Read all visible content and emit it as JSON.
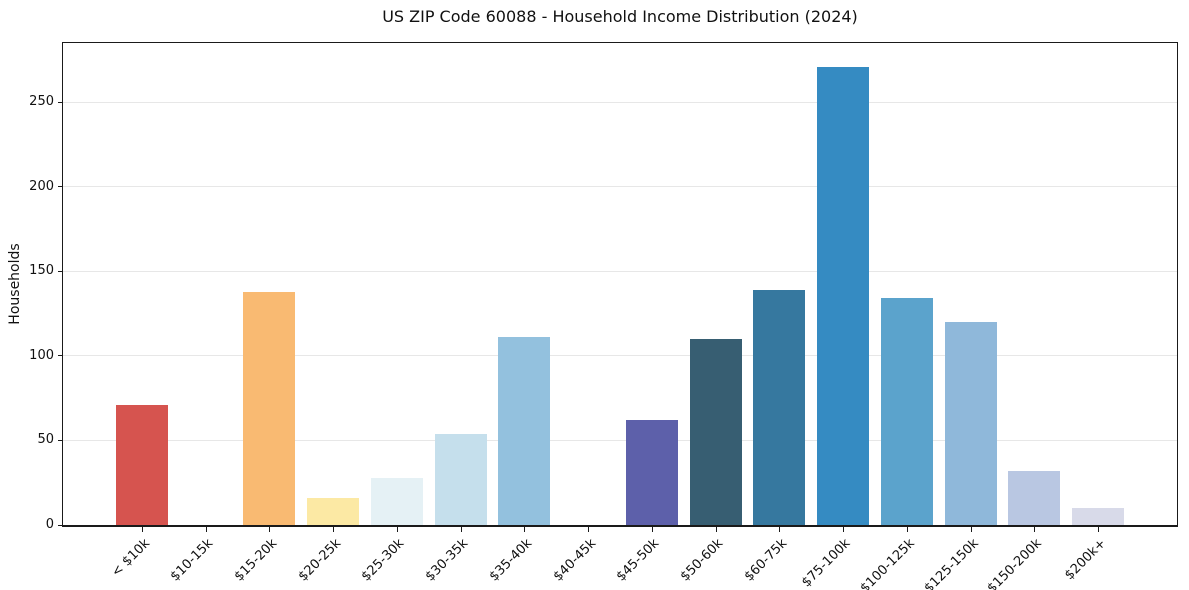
{
  "figure": {
    "background": "#ffffff",
    "axis_color": "#1a1a1a",
    "gridline_color": "#e7e7e7"
  },
  "chart_data": {
    "type": "bar",
    "title": "US ZIP Code 60088 - Household Income Distribution (2024)",
    "xlabel": "",
    "ylabel": "Households",
    "categories": [
      "< $10k",
      "$10-15k",
      "$15-20k",
      "$20-25k",
      "$25-30k",
      "$30-35k",
      "$35-40k",
      "$40-45k",
      "$45-50k",
      "$50-60k",
      "$60-75k",
      "$75-100k",
      "$100-125k",
      "$125-150k",
      "$150-200k",
      "$200k+"
    ],
    "values": [
      71,
      0,
      138,
      16,
      28,
      54,
      111,
      0,
      62,
      110,
      139,
      271,
      134,
      120,
      32,
      10
    ],
    "bar_colors": [
      "#d6544f",
      null,
      "#f9ba72",
      "#fce9a4",
      "#e5f1f5",
      "#c5dfec",
      "#93c1de",
      null,
      "#5d60aa",
      "#375e72",
      "#36789f",
      "#358bc2",
      "#5ba3cc",
      "#8fb8da",
      "#b9c7e2",
      "#d8dae9"
    ],
    "yticks": [
      0,
      50,
      100,
      150,
      200,
      250
    ],
    "ylim": [
      0,
      285
    ],
    "grid": "horizontal",
    "legend_position": "none",
    "x_tick_rotation_deg": 45
  }
}
